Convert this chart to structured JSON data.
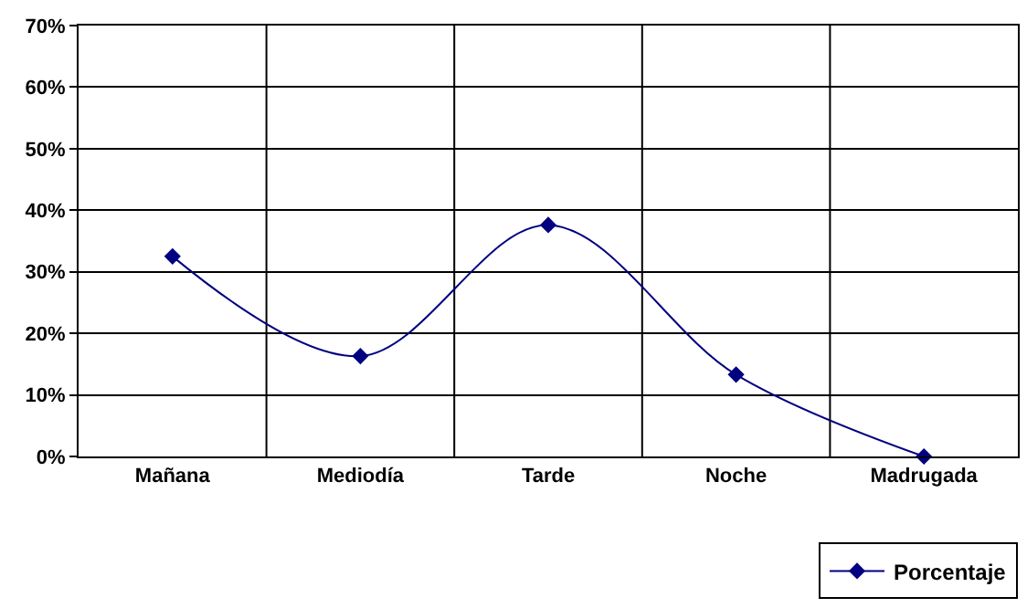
{
  "chart_data": {
    "type": "line",
    "categories": [
      "Mañana",
      "Mediodía",
      "Tarde",
      "Noche",
      "Madrugada"
    ],
    "series": [
      {
        "name": "Porcentaje",
        "color": "#000080",
        "values": [
          32.5,
          16.3,
          37.6,
          13.3,
          0
        ]
      }
    ],
    "ylim": [
      0,
      70
    ],
    "yticks": [
      {
        "value": 0,
        "label": "0%"
      },
      {
        "value": 10,
        "label": "10%"
      },
      {
        "value": 20,
        "label": "20%"
      },
      {
        "value": 30,
        "label": "30%"
      },
      {
        "value": 40,
        "label": "40%"
      },
      {
        "value": 50,
        "label": "50%"
      },
      {
        "value": 60,
        "label": "60%"
      },
      {
        "value": 70,
        "label": "70%"
      }
    ],
    "grid": true,
    "legend": "bottom right",
    "marker": "diamond",
    "line_style": "solid"
  }
}
